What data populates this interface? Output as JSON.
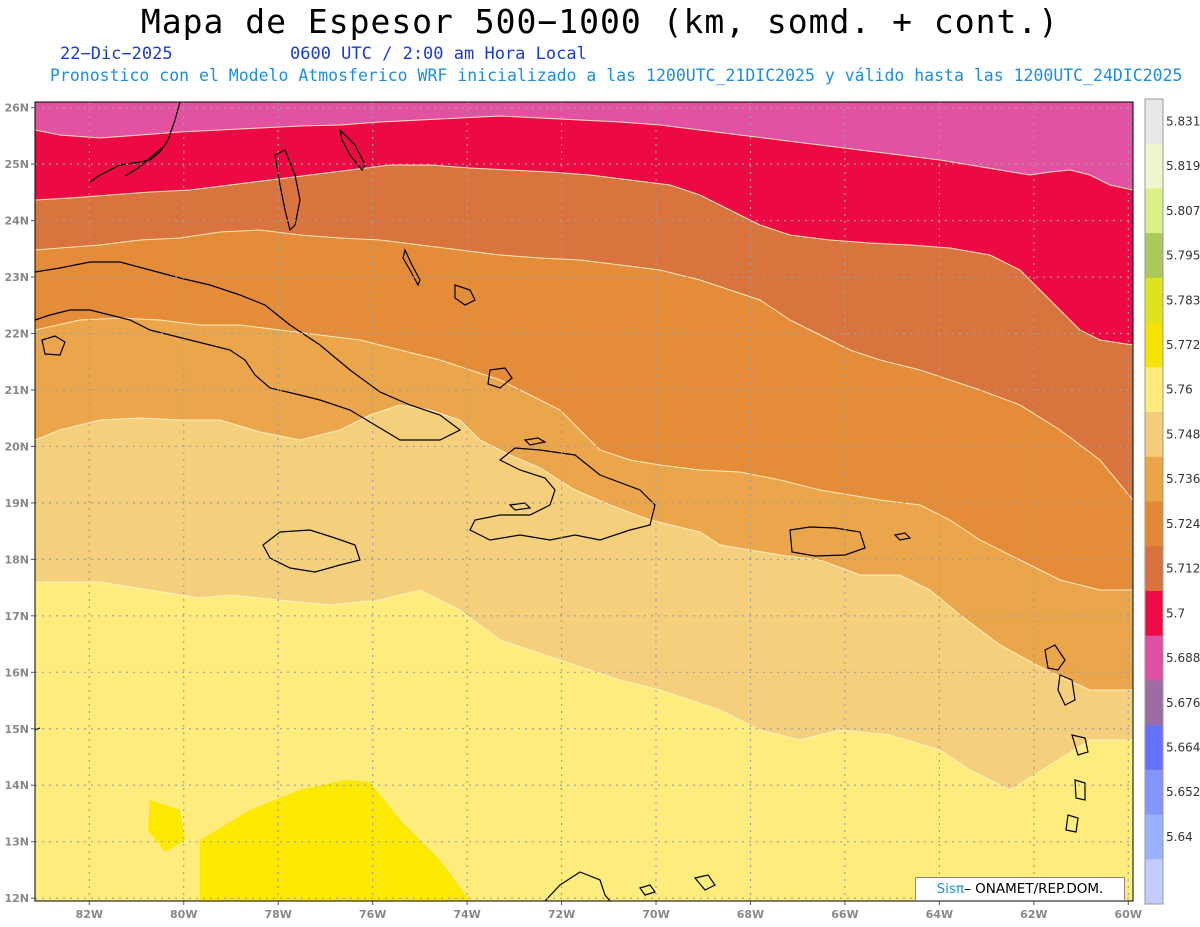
{
  "header": {
    "title": "Mapa de Espesor 500−1000 (km, somd. + cont.)",
    "date": "22−Dic−2025",
    "time": "0600 UTC / 2:00 am Hora Local",
    "subtitle": "Pronostico con el Modelo Atmosferico WRF inicializado a las 1200UTC_21DIC2025 y válido hasta las  1200UTC_24DIC2025"
  },
  "axes": {
    "lat_labels": [
      "26N",
      "25N",
      "24N",
      "23N",
      "22N",
      "21N",
      "20N",
      "19N",
      "18N",
      "17N",
      "16N",
      "15N",
      "14N",
      "13N",
      "12N"
    ],
    "lon_labels": [
      "82W",
      "80W",
      "78W",
      "76W",
      "74W",
      "72W",
      "70W",
      "68W",
      "66W",
      "64W",
      "62W",
      "60W"
    ]
  },
  "colorbar": {
    "labels": [
      "5.831",
      "5.819",
      "5.807",
      "5.795",
      "5.783",
      "5.772",
      "5.76",
      "5.748",
      "5.736",
      "5.724",
      "5.712",
      "5.7",
      "5.688",
      "5.676",
      "5.664",
      "5.652",
      "5.64"
    ],
    "colors": [
      "#e8e8e8",
      "#f0f5cf",
      "#dcf08a",
      "#a9c95a",
      "#dde31c",
      "#f5e200",
      "#feeb7d",
      "#f4cd7b",
      "#eba448",
      "#e38935",
      "#d9733d",
      "#ee0a44",
      "#e050a2",
      "#9e6ba3",
      "#6672fe",
      "#8496fc",
      "#9ab2fe",
      "#c3ccfe"
    ]
  },
  "credit": {
    "brand": "Sisπ",
    "text": "– ONAMET/REP.DOM."
  },
  "map_colors": {
    "band_5_772": "#fde900",
    "band_5_76": "#feec7c",
    "band_5_748": "#f4cf7c",
    "band_5_736": "#eba64b",
    "band_5_724": "#e48c37",
    "band_5_712": "#d9743e",
    "band_5_7": "#ed0a44",
    "band_5_688": "#e352a1"
  }
}
